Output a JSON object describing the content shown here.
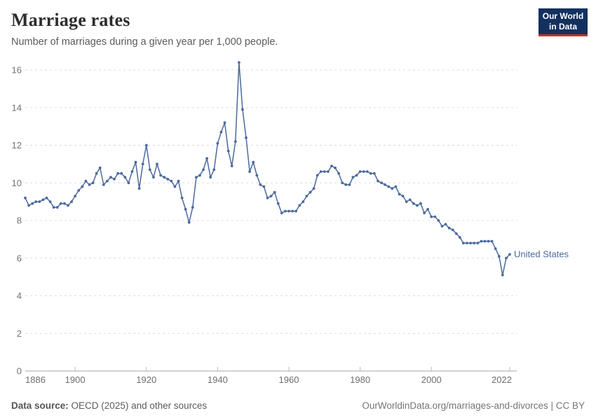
{
  "header": {
    "title": "Marriage rates",
    "subtitle": "Number of marriages during a given year per 1,000 people.",
    "logo": {
      "line1": "Our World",
      "line2": "in Data",
      "bg_color": "#13315F",
      "accent_color": "#C5351F"
    }
  },
  "chart_data": {
    "type": "line",
    "title": "Marriage rates",
    "subtitle": "Number of marriages during a given year per 1,000 people.",
    "xlabel": "",
    "ylabel": "",
    "ylim": [
      0,
      16
    ],
    "yticks": [
      0,
      2,
      4,
      6,
      8,
      10,
      12,
      14,
      16
    ],
    "xticks": [
      1886,
      1900,
      1920,
      1940,
      1960,
      1980,
      2000,
      2022
    ],
    "grid": "horizontal-dashed",
    "legend_position": "end-of-line",
    "line_color": "#4C6A9C",
    "grid_color": "#dcdcdc",
    "axis_color": "#a5a5a5",
    "tick_label_color": "#737373",
    "series": [
      {
        "name": "United States",
        "color": "#4C6A9C",
        "x": [
          1886,
          1887,
          1888,
          1889,
          1890,
          1891,
          1892,
          1893,
          1894,
          1895,
          1896,
          1897,
          1898,
          1899,
          1900,
          1901,
          1902,
          1903,
          1904,
          1905,
          1906,
          1907,
          1908,
          1909,
          1910,
          1911,
          1912,
          1913,
          1914,
          1915,
          1916,
          1917,
          1918,
          1919,
          1920,
          1921,
          1922,
          1923,
          1924,
          1925,
          1926,
          1927,
          1928,
          1929,
          1930,
          1931,
          1932,
          1933,
          1934,
          1935,
          1936,
          1937,
          1938,
          1939,
          1940,
          1941,
          1942,
          1943,
          1944,
          1945,
          1946,
          1947,
          1948,
          1949,
          1950,
          1951,
          1952,
          1953,
          1954,
          1955,
          1956,
          1957,
          1958,
          1959,
          1960,
          1961,
          1962,
          1963,
          1964,
          1965,
          1966,
          1967,
          1968,
          1969,
          1970,
          1971,
          1972,
          1973,
          1974,
          1975,
          1976,
          1977,
          1978,
          1979,
          1980,
          1981,
          1982,
          1983,
          1984,
          1985,
          1986,
          1987,
          1988,
          1989,
          1990,
          1991,
          1992,
          1993,
          1994,
          1995,
          1996,
          1997,
          1998,
          1999,
          2000,
          2001,
          2002,
          2003,
          2004,
          2005,
          2006,
          2007,
          2008,
          2009,
          2010,
          2011,
          2012,
          2013,
          2014,
          2015,
          2016,
          2017,
          2018,
          2019,
          2020,
          2021,
          2022
        ],
        "values": [
          9.2,
          8.8,
          8.9,
          9.0,
          9.0,
          9.1,
          9.2,
          9.0,
          8.7,
          8.7,
          8.9,
          8.9,
          8.8,
          9.0,
          9.3,
          9.6,
          9.8,
          10.1,
          9.9,
          10.0,
          10.5,
          10.8,
          9.9,
          10.1,
          10.3,
          10.2,
          10.5,
          10.5,
          10.3,
          10.0,
          10.6,
          11.1,
          9.7,
          11.0,
          12.0,
          10.7,
          10.3,
          11.0,
          10.4,
          10.3,
          10.2,
          10.1,
          9.8,
          10.1,
          9.2,
          8.6,
          7.9,
          8.7,
          10.3,
          10.4,
          10.7,
          11.3,
          10.3,
          10.7,
          12.1,
          12.7,
          13.2,
          11.7,
          10.9,
          12.2,
          16.4,
          13.9,
          12.4,
          10.6,
          11.1,
          10.4,
          9.9,
          9.8,
          9.2,
          9.3,
          9.5,
          8.9,
          8.4,
          8.5,
          8.5,
          8.5,
          8.5,
          8.8,
          9.0,
          9.3,
          9.5,
          9.7,
          10.4,
          10.6,
          10.6,
          10.6,
          10.9,
          10.8,
          10.5,
          10.0,
          9.9,
          9.9,
          10.3,
          10.4,
          10.6,
          10.6,
          10.6,
          10.5,
          10.5,
          10.1,
          10.0,
          9.9,
          9.8,
          9.7,
          9.8,
          9.4,
          9.3,
          9.0,
          9.1,
          8.9,
          8.8,
          8.9,
          8.4,
          8.6,
          8.2,
          8.2,
          8.0,
          7.7,
          7.8,
          7.6,
          7.5,
          7.3,
          7.1,
          6.8,
          6.8,
          6.8,
          6.8,
          6.8,
          6.9,
          6.9,
          6.9,
          6.9,
          6.5,
          6.1,
          5.1,
          6.0,
          6.2
        ]
      }
    ]
  },
  "footer": {
    "source_label": "Data source:",
    "source_value": "OECD (2025) and other sources",
    "attribution": "OurWorldinData.org/marriages-and-divorces | CC BY"
  }
}
